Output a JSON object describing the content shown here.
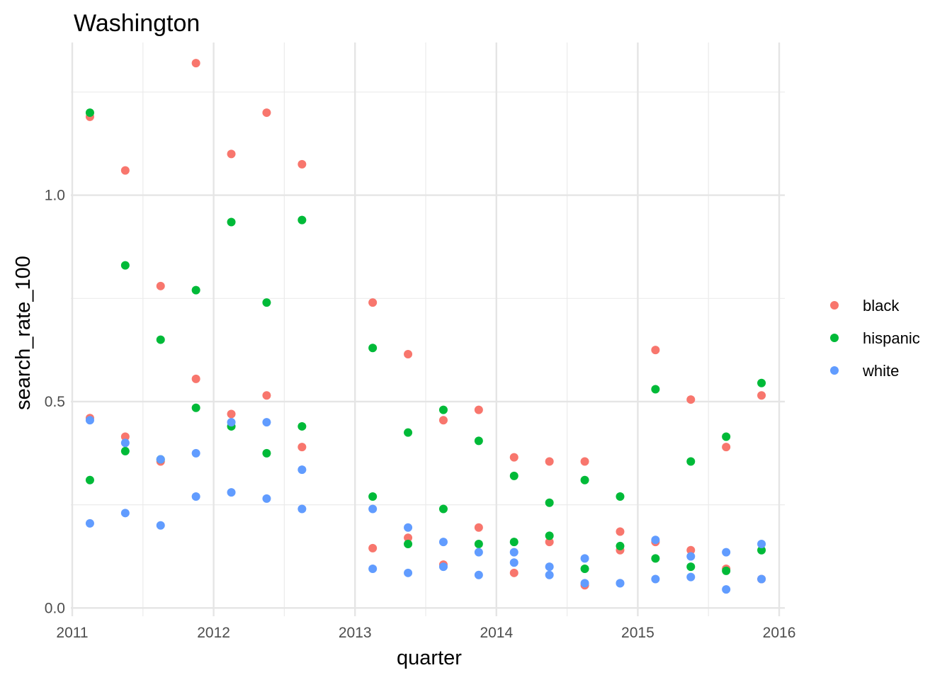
{
  "chart_data": {
    "type": "scatter",
    "title": "Washington",
    "xlabel": "quarter",
    "ylabel": "search_rate_100",
    "xlim": [
      2010.99,
      2016.04
    ],
    "ylim": [
      -0.02,
      1.37
    ],
    "x_ticks": [
      2011,
      2012,
      2013,
      2014,
      2015,
      2016
    ],
    "x_tick_labels": [
      "2011",
      "2012",
      "2013",
      "2014",
      "2015",
      "2016"
    ],
    "y_ticks": [
      0,
      0.5,
      1.0
    ],
    "y_tick_labels": [
      "0.0",
      "0.5",
      "1.0"
    ],
    "grid": true,
    "legend_position": "right",
    "x": [
      2011.125,
      2011.375,
      2011.625,
      2011.875,
      2012.125,
      2012.375,
      2012.625,
      2013.125,
      2013.375,
      2013.625,
      2013.875,
      2014.125,
      2014.375,
      2014.625,
      2014.875,
      2015.125,
      2015.375,
      2015.625,
      2015.875
    ],
    "series": [
      {
        "name": "black",
        "color": "#F8766D",
        "values": [
          1.19,
          1.06,
          0.78,
          1.32,
          1.1,
          1.2,
          1.075,
          0.74,
          0.615,
          0.455,
          0.48,
          0.365,
          0.355,
          0.355,
          0.185,
          0.16,
          0.14,
          0.095,
          0.07
        ]
      },
      {
        "name": "black",
        "color": "#F8766D",
        "x": [
          2011.125,
          2011.375,
          2011.625,
          2011.875,
          2012.125,
          2012.375,
          2012.625,
          2013.125,
          2013.375,
          2013.625,
          2013.875,
          2014.125,
          2014.375,
          2014.625,
          2014.875,
          2015.125,
          2015.375,
          2015.625,
          2015.875
        ],
        "values": [
          0.46,
          0.415,
          0.355,
          0.555,
          0.47,
          0.515,
          0.39,
          0.145,
          0.17,
          0.105,
          0.195,
          0.085,
          0.16,
          0.055,
          0.14,
          0.625,
          0.505,
          0.39,
          0.515
        ]
      },
      {
        "name": "hispanic",
        "color": "#00BA38",
        "values": [
          1.2,
          0.83,
          0.65,
          0.77,
          0.935,
          0.74,
          0.94,
          0.63,
          0.425,
          0.48,
          0.405,
          0.32,
          0.255,
          0.31,
          0.27,
          0.53,
          0.355,
          0.415,
          0.545
        ]
      },
      {
        "name": "hispanic",
        "color": "#00BA38",
        "x": [
          2011.125,
          2011.375,
          2011.625,
          2011.875,
          2012.125,
          2012.375,
          2012.625,
          2013.125,
          2013.375,
          2013.625,
          2013.875,
          2014.125,
          2014.375,
          2014.625,
          2014.875,
          2015.125,
          2015.375,
          2015.625,
          2015.875
        ],
        "values": [
          0.31,
          0.38,
          0.36,
          0.485,
          0.44,
          0.375,
          0.44,
          0.27,
          0.155,
          0.24,
          0.155,
          0.16,
          0.175,
          0.095,
          0.15,
          0.12,
          0.1,
          0.09,
          0.14
        ]
      },
      {
        "name": "white",
        "color": "#619CFF",
        "values": [
          0.455,
          0.4,
          0.36,
          0.375,
          0.45,
          0.45,
          0.335,
          0.24,
          0.195,
          0.16,
          0.135,
          0.135,
          0.1,
          0.06,
          0.06,
          0.165,
          0.125,
          0.135,
          0.155
        ]
      },
      {
        "name": "white",
        "color": "#619CFF",
        "x": [
          2011.125,
          2011.375,
          2011.625,
          2011.875,
          2012.125,
          2012.375,
          2012.625,
          2013.125,
          2013.375,
          2013.625,
          2013.875,
          2014.125,
          2014.375,
          2014.625,
          2014.875,
          2015.125,
          2015.375,
          2015.625,
          2015.875
        ],
        "values": [
          0.205,
          0.23,
          0.2,
          0.27,
          0.28,
          0.265,
          0.24,
          0.095,
          0.085,
          0.1,
          0.08,
          0.11,
          0.08,
          0.12,
          0.06,
          0.07,
          0.075,
          0.045,
          0.07
        ]
      }
    ],
    "legend": [
      {
        "label": "black",
        "color": "#F8766D"
      },
      {
        "label": "hispanic",
        "color": "#00BA38"
      },
      {
        "label": "white",
        "color": "#619CFF"
      }
    ]
  }
}
